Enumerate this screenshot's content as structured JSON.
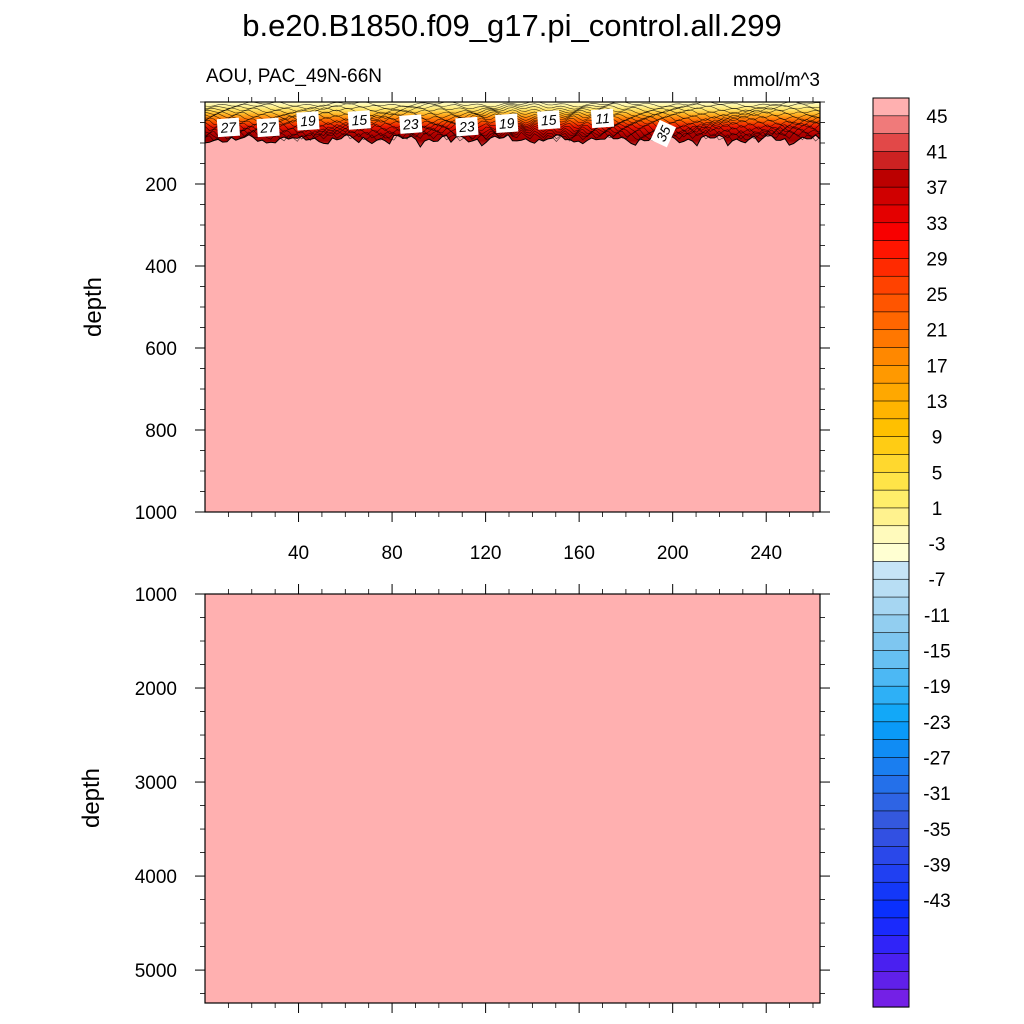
{
  "chart_data": {
    "type": "heatmap",
    "title": "b.e20.B1850.f09_g17.pi_control.all.299",
    "left_string": "AOU, PAC_49N-66N",
    "right_string": "mmol/m^3",
    "fill_color": "#FFB0B0",
    "panels": [
      {
        "name": "upper",
        "ylabel": "depth",
        "ylim": [
          1000,
          0
        ],
        "yticks": [
          200,
          400,
          600,
          800,
          1000
        ],
        "xlim": [
          0,
          263
        ],
        "xticks": [
          40,
          80,
          120,
          160,
          200,
          240
        ],
        "xlabel": "",
        "surface_band_depth": 90,
        "contour_labels": [
          {
            "text": "27",
            "x": 10,
            "depth": 62
          },
          {
            "text": "27",
            "x": 27,
            "depth": 62
          },
          {
            "text": "19",
            "x": 44,
            "depth": 46
          },
          {
            "text": "15",
            "x": 66,
            "depth": 44
          },
          {
            "text": "23",
            "x": 88,
            "depth": 54
          },
          {
            "text": "23",
            "x": 112,
            "depth": 60
          },
          {
            "text": "19",
            "x": 129,
            "depth": 52
          },
          {
            "text": "15",
            "x": 147,
            "depth": 44
          },
          {
            "text": "11",
            "x": 170,
            "depth": 40
          },
          {
            "text": "35",
            "x": 196,
            "depth": 77
          }
        ]
      },
      {
        "name": "lower",
        "ylabel": "depth",
        "ylim": [
          5350,
          1000
        ],
        "yticks": [
          1000,
          2000,
          3000,
          4000,
          5000
        ],
        "xlim": [
          0,
          263
        ],
        "xticks": [
          40,
          80,
          120,
          160,
          200,
          240
        ],
        "xlabel": ""
      }
    ],
    "colorbar": {
      "labels": [
        "45",
        "41",
        "37",
        "33",
        "29",
        "25",
        "21",
        "17",
        "13",
        "9",
        "5",
        "1",
        "-3",
        "-7",
        "-11",
        "-15",
        "-19",
        "-23",
        "-27",
        "-31",
        "-35",
        "-39",
        "-43"
      ],
      "colors": [
        "#FFB0B0",
        "#F07A7A",
        "#E24848",
        "#CC2222",
        "#BB0000",
        "#D00000",
        "#E40000",
        "#F80000",
        "#FF1500",
        "#FF2A00",
        "#FF4200",
        "#FF5500",
        "#FF6600",
        "#FF7700",
        "#FF8800",
        "#FF9900",
        "#FFA800",
        "#FFB400",
        "#FFC000",
        "#FFCC14",
        "#FFD82E",
        "#FFE448",
        "#FFEE6A",
        "#FFF28E",
        "#FFFABC",
        "#FFFFD2",
        "#C6E4F6",
        "#B8DEF4",
        "#A6D6F2",
        "#92CEF0",
        "#7EC6F0",
        "#66C0F2",
        "#4CB8F4",
        "#2EB0F6",
        "#12A8F8",
        "#0A9AF8",
        "#108CF4",
        "#1A7EF0",
        "#2470EA",
        "#2E64E4",
        "#3458DE",
        "#3250E2",
        "#2A48EA",
        "#2040F2",
        "#1438F8",
        "#0A30FC",
        "#1A2AFC",
        "#3024F8",
        "#4A20F0",
        "#6020EA",
        "#7420E6"
      ]
    }
  }
}
